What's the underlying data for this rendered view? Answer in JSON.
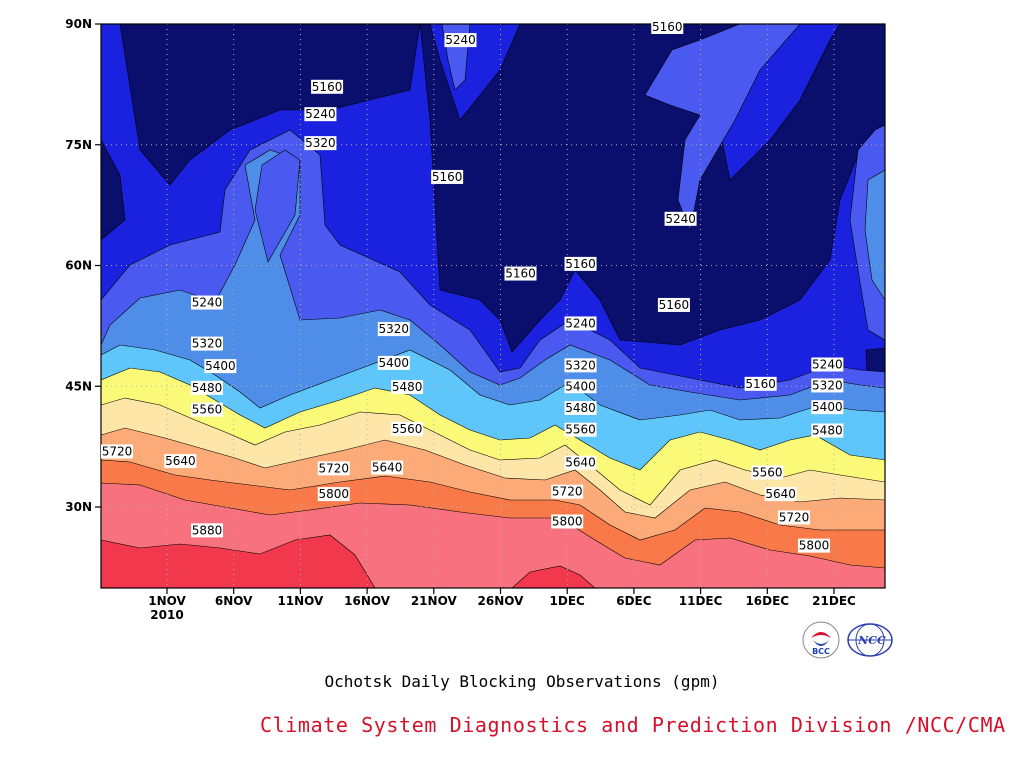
{
  "caption": "Ochotsk Daily Blocking Observations (gpm)",
  "credit": "Climate System Diagnostics and Prediction Division /NCC/CMA",
  "colors": {
    "levels": [
      "#0a0f6e",
      "#1a22e0",
      "#4a5af0",
      "#4f8ee8",
      "#5ec6fa",
      "#fafa78",
      "#fde6a8",
      "#fcab78",
      "#f97a48",
      "#f7727e",
      "#f1384c"
    ]
  },
  "y_axis": {
    "ticks": [
      {
        "label": "90N",
        "lat": 90
      },
      {
        "label": "75N",
        "lat": 75
      },
      {
        "label": "60N",
        "lat": 60
      },
      {
        "label": "45N",
        "lat": 45
      },
      {
        "label": "30N",
        "lat": 30
      }
    ]
  },
  "x_axis": {
    "ticks": [
      {
        "label": "1NOV",
        "sub": "2010",
        "day": 1
      },
      {
        "label": "6NOV",
        "sub": "",
        "day": 6
      },
      {
        "label": "11NOV",
        "sub": "",
        "day": 11
      },
      {
        "label": "16NOV",
        "sub": "",
        "day": 16
      },
      {
        "label": "21NOV",
        "sub": "",
        "day": 21
      },
      {
        "label": "26NOV",
        "sub": "",
        "day": 26
      },
      {
        "label": "1DEC",
        "sub": "",
        "day": 31
      },
      {
        "label": "6DEC",
        "sub": "",
        "day": 36
      },
      {
        "label": "11DEC",
        "sub": "",
        "day": 41
      },
      {
        "label": "16DEC",
        "sub": "",
        "day": 46
      },
      {
        "label": "21DEC",
        "sub": "",
        "day": 51
      }
    ]
  },
  "contour_labels": [
    {
      "text": "5160",
      "day": 22,
      "lat": 71
    },
    {
      "text": "5240",
      "day": 23,
      "lat": 88
    },
    {
      "text": "5160",
      "day": 27.5,
      "lat": 59
    },
    {
      "text": "5160",
      "day": 32,
      "lat": 60.2
    },
    {
      "text": "5240",
      "day": 32,
      "lat": 52.8
    },
    {
      "text": "5320",
      "day": 32,
      "lat": 47.6
    },
    {
      "text": "5400",
      "day": 32,
      "lat": 45
    },
    {
      "text": "5480",
      "day": 32,
      "lat": 42.3
    },
    {
      "text": "5560",
      "day": 32,
      "lat": 39.6
    },
    {
      "text": "5640",
      "day": 32,
      "lat": 35.5
    },
    {
      "text": "5720",
      "day": 31,
      "lat": 31.9
    },
    {
      "text": "5800",
      "day": 31,
      "lat": 28.2
    },
    {
      "text": "5160",
      "day": 38.5,
      "lat": 89.6
    },
    {
      "text": "5240",
      "day": 39.5,
      "lat": 65.8
    },
    {
      "text": "5160",
      "day": 39,
      "lat": 55.1
    },
    {
      "text": "5160",
      "day": 45.5,
      "lat": 45.3
    },
    {
      "text": "5240",
      "day": 50.5,
      "lat": 47.7
    },
    {
      "text": "5320",
      "day": 50.5,
      "lat": 45.1
    },
    {
      "text": "5400",
      "day": 50.5,
      "lat": 42.4
    },
    {
      "text": "5480",
      "day": 50.5,
      "lat": 39.5
    },
    {
      "text": "5560",
      "day": 46,
      "lat": 34.3
    },
    {
      "text": "5640",
      "day": 47,
      "lat": 31.6
    },
    {
      "text": "5720",
      "day": 48,
      "lat": 28.7
    },
    {
      "text": "5800",
      "day": 49.5,
      "lat": 25.2
    },
    {
      "text": "5160",
      "day": 13,
      "lat": 82.2
    },
    {
      "text": "5240",
      "day": 12.5,
      "lat": 78.8
    },
    {
      "text": "5320",
      "day": 12.5,
      "lat": 75.2
    },
    {
      "text": "5240",
      "day": 4,
      "lat": 55.4
    },
    {
      "text": "5320",
      "day": 4,
      "lat": 50.3
    },
    {
      "text": "5400",
      "day": 5,
      "lat": 47.5
    },
    {
      "text": "5480",
      "day": 4,
      "lat": 44.8
    },
    {
      "text": "5560",
      "day": 4,
      "lat": 42.1
    },
    {
      "text": "5640",
      "day": 2,
      "lat": 35.7
    },
    {
      "text": "5720",
      "day": -4,
      "lat": 36.9
    },
    {
      "text": "5880",
      "day": 4,
      "lat": 27.1
    },
    {
      "text": "5720",
      "day": 13.5,
      "lat": 34.8
    },
    {
      "text": "5800",
      "day": 13.5,
      "lat": 31.6
    },
    {
      "text": "5640",
      "day": 17.5,
      "lat": 34.9
    },
    {
      "text": "5560",
      "day": 19,
      "lat": 39.7
    },
    {
      "text": "5480",
      "day": 19,
      "lat": 44.9
    },
    {
      "text": "5400",
      "day": 18,
      "lat": 47.9
    },
    {
      "text": "5320",
      "day": 18,
      "lat": 52.1
    }
  ],
  "logos": [
    {
      "name": "BCC",
      "text": "BCC"
    },
    {
      "name": "NCC",
      "text": "NCC"
    }
  ]
}
